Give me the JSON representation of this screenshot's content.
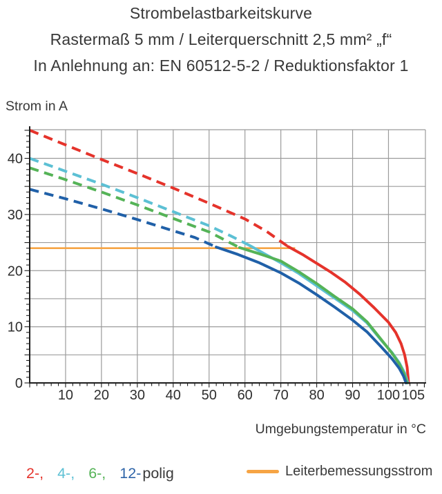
{
  "title": {
    "line1": "Strombelastbarkeitskurve",
    "line2": "Rastermaß 5 mm / Leiterquerschnitt 2,5 mm² „f“",
    "line3": "In Anlehnung an: EN 60512-5-2 / Reduktionsfaktor 1"
  },
  "y_axis_title": "Strom in A",
  "x_axis_title": "Umgebungstemperatur in °C",
  "legend": {
    "pole_items": [
      {
        "label": "2-,",
        "color": "#e5332b"
      },
      {
        "label": "4-,",
        "color": "#5cc0d4"
      },
      {
        "label": "6-,",
        "color": "#55b357"
      },
      {
        "label": "12-",
        "color": "#2e64a8"
      }
    ],
    "suffix": "polig",
    "rated_line": {
      "label": "Leiterbemessungsstrom",
      "color": "#f6a444"
    }
  },
  "chart_data": {
    "type": "line",
    "title": "Strombelastbarkeitskurve — Rastermaß 5 mm / Leiterquerschnitt 2,5 mm² „f“ — In Anlehnung an: EN 60512-5-2 / Reduktionsfaktor 1",
    "xlabel": "Umgebungstemperatur in °C",
    "ylabel": "Strom in A",
    "xlim": [
      0,
      110.3
    ],
    "ylim": [
      0,
      45.1
    ],
    "grid": {
      "x_step": 10,
      "y_step": 5
    },
    "x_minor_step": 2,
    "y_minor_step": 1,
    "x_ticks": {
      "values": [
        10,
        20,
        30,
        40,
        50,
        60,
        70,
        80,
        90,
        100,
        105
      ],
      "labels": [
        "10",
        "20",
        "30",
        "40",
        "50",
        "60",
        "70",
        "80",
        "90",
        "100",
        "105"
      ]
    },
    "y_ticks": {
      "values": [
        0,
        10,
        20,
        30,
        40
      ],
      "labels": [
        "0",
        "10",
        "20",
        "30",
        "40"
      ]
    },
    "colors": {
      "grid": "#9b9b9b",
      "axis": "#1c1c1c",
      "tick_label": "#2e2e2e"
    },
    "rated_current_line": {
      "name": "Leiterbemessungsstrom",
      "value": 24,
      "x_start": 0,
      "x_end": 74,
      "color": "#f6a444"
    },
    "series": [
      {
        "name": "2-polig",
        "color": "#e5332b",
        "dash_until": 72,
        "points": [
          [
            0,
            45
          ],
          [
            10,
            42.4
          ],
          [
            20,
            39.8
          ],
          [
            30,
            37.3
          ],
          [
            40,
            34.7
          ],
          [
            50,
            32.0
          ],
          [
            60,
            29.2
          ],
          [
            66,
            27.0
          ],
          [
            72,
            24.3
          ],
          [
            76,
            22.9
          ],
          [
            80,
            21.3
          ],
          [
            84,
            19.7
          ],
          [
            88,
            17.9
          ],
          [
            92,
            15.8
          ],
          [
            96,
            13.4
          ],
          [
            100,
            10.8
          ],
          [
            102,
            9.0
          ],
          [
            103.5,
            7.0
          ],
          [
            104.5,
            5.0
          ],
          [
            105.2,
            2.8
          ],
          [
            105.6,
            0
          ]
        ]
      },
      {
        "name": "4-polig",
        "color": "#5cc0d4",
        "dash_until": 61.5,
        "points": [
          [
            0,
            40
          ],
          [
            10,
            37.7
          ],
          [
            20,
            35.4
          ],
          [
            30,
            33.0
          ],
          [
            40,
            30.5
          ],
          [
            50,
            28.0
          ],
          [
            56,
            26.2
          ],
          [
            61.5,
            24.4
          ],
          [
            66,
            22.8
          ],
          [
            70,
            21.4
          ],
          [
            75,
            19.5
          ],
          [
            80,
            17.3
          ],
          [
            85,
            15.1
          ],
          [
            90,
            12.9
          ],
          [
            94,
            10.7
          ],
          [
            98,
            7.6
          ],
          [
            101,
            5.4
          ],
          [
            103,
            3.6
          ],
          [
            104.5,
            1.8
          ],
          [
            105.4,
            0
          ]
        ]
      },
      {
        "name": "6-polig",
        "color": "#55b357",
        "dash_until": 58.5,
        "points": [
          [
            0,
            38.3
          ],
          [
            10,
            36.2
          ],
          [
            20,
            34.0
          ],
          [
            30,
            31.7
          ],
          [
            40,
            29.3
          ],
          [
            50,
            26.9
          ],
          [
            58.5,
            24.1
          ],
          [
            64,
            23.0
          ],
          [
            70,
            21.7
          ],
          [
            75,
            19.8
          ],
          [
            80,
            17.7
          ],
          [
            85,
            15.4
          ],
          [
            90,
            13.2
          ],
          [
            94,
            10.9
          ],
          [
            98,
            7.7
          ],
          [
            101,
            5.3
          ],
          [
            103,
            3.4
          ],
          [
            104.3,
            1.7
          ],
          [
            105.2,
            0
          ]
        ]
      },
      {
        "name": "12-polig",
        "color": "#2060a8",
        "dash_until": 52,
        "points": [
          [
            0,
            34.5
          ],
          [
            10,
            32.8
          ],
          [
            20,
            31.0
          ],
          [
            30,
            29.1
          ],
          [
            40,
            27.1
          ],
          [
            46,
            25.9
          ],
          [
            52,
            24.2
          ],
          [
            58,
            22.9
          ],
          [
            64,
            21.4
          ],
          [
            70,
            19.6
          ],
          [
            75,
            17.8
          ],
          [
            80,
            15.7
          ],
          [
            85,
            13.5
          ],
          [
            90,
            11.2
          ],
          [
            94,
            9.1
          ],
          [
            98,
            6.4
          ],
          [
            101,
            4.3
          ],
          [
            103,
            2.6
          ],
          [
            104.2,
            1.2
          ],
          [
            104.9,
            0
          ]
        ]
      }
    ]
  }
}
